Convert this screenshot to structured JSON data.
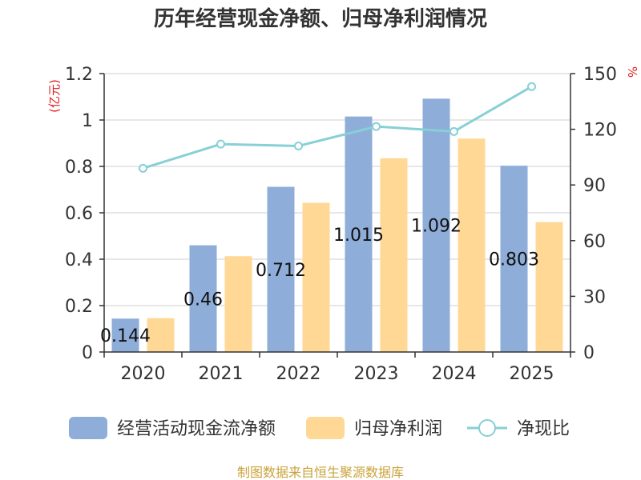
{
  "chart_data": {
    "type": "bar",
    "title": "历年经营现金净额、归母净利润情况",
    "categories": [
      "2020",
      "2021",
      "2022",
      "2023",
      "2024",
      "2025"
    ],
    "series": [
      {
        "name": "经营活动现金流净额",
        "axis": "left",
        "color": "#8EADD9",
        "values": [
          0.144,
          0.46,
          0.712,
          1.015,
          1.092,
          0.803
        ],
        "labels": [
          "0.144",
          "0.46",
          "0.712",
          "1.015",
          "1.092",
          "0.803"
        ]
      },
      {
        "name": "归母净利润",
        "axis": "left",
        "color": "#FFD896",
        "values": [
          0.146,
          0.413,
          0.643,
          0.835,
          0.92,
          0.56
        ]
      },
      {
        "name": "净现比",
        "axis": "right",
        "type": "line",
        "color": "#86D0D6",
        "values": [
          99,
          112,
          111,
          121.5,
          118.8,
          143
        ]
      }
    ],
    "left_axis": {
      "unit": "(亿元)",
      "ylim": [
        0,
        1.2
      ],
      "ticks": [
        "0",
        "0.2",
        "0.4",
        "0.6",
        "0.8",
        "1",
        "1.2"
      ]
    },
    "right_axis": {
      "unit": "%",
      "ylim": [
        0,
        150
      ],
      "ticks": [
        "0",
        "30",
        "60",
        "90",
        "120",
        "150"
      ]
    },
    "grid": true,
    "legend_position": "bottom"
  },
  "source": "制图数据来自恒生聚源数据库"
}
